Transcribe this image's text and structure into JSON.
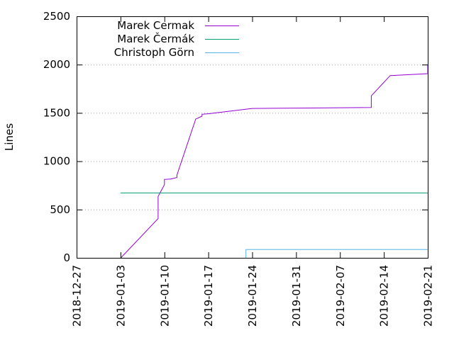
{
  "chart_data": {
    "type": "line",
    "title": "",
    "xlabel": "",
    "ylabel": "Lines",
    "xlim": [
      "2018-12-27",
      "2019-02-21"
    ],
    "ylim": [
      0,
      2500
    ],
    "x_ticks": [
      "2018-12-27",
      "2019-01-03",
      "2019-01-10",
      "2019-01-17",
      "2019-01-24",
      "2019-01-31",
      "2019-02-07",
      "2019-02-14",
      "2019-02-21"
    ],
    "y_ticks": [
      0,
      500,
      1000,
      1500,
      2000,
      2500
    ],
    "grid": "dotted horizontal lines at y ticks",
    "legend_position": "top-left",
    "series": [
      {
        "name": "Marek Cermak",
        "color": "#9400d3",
        "points": [
          [
            "2019-01-03",
            0
          ],
          [
            "2019-01-09",
            410
          ],
          [
            "2019-01-09",
            640
          ],
          [
            "2019-01-10",
            760
          ],
          [
            "2019-01-10",
            815
          ],
          [
            "2019-01-11",
            820
          ],
          [
            "2019-01-12",
            835
          ],
          [
            "2019-01-12",
            860
          ],
          [
            "2019-01-15",
            1440
          ],
          [
            "2019-01-16",
            1470
          ],
          [
            "2019-01-16",
            1490
          ],
          [
            "2019-01-17",
            1495
          ],
          [
            "2019-01-24",
            1550
          ],
          [
            "2019-02-04",
            1555
          ],
          [
            "2019-02-12",
            1560
          ],
          [
            "2019-02-12",
            1680
          ],
          [
            "2019-02-15",
            1890
          ],
          [
            "2019-02-21",
            1910
          ],
          [
            "2019-02-21",
            2000
          ]
        ]
      },
      {
        "name": "Marek Čermák",
        "color": "#009e73",
        "points": [
          [
            "2019-01-03",
            675
          ],
          [
            "2019-02-21",
            675
          ]
        ]
      },
      {
        "name": "Christoph Görn",
        "color": "#56b4e9",
        "points": [
          [
            "2019-01-23",
            0
          ],
          [
            "2019-01-23",
            90
          ],
          [
            "2019-02-21",
            90
          ]
        ]
      }
    ]
  }
}
